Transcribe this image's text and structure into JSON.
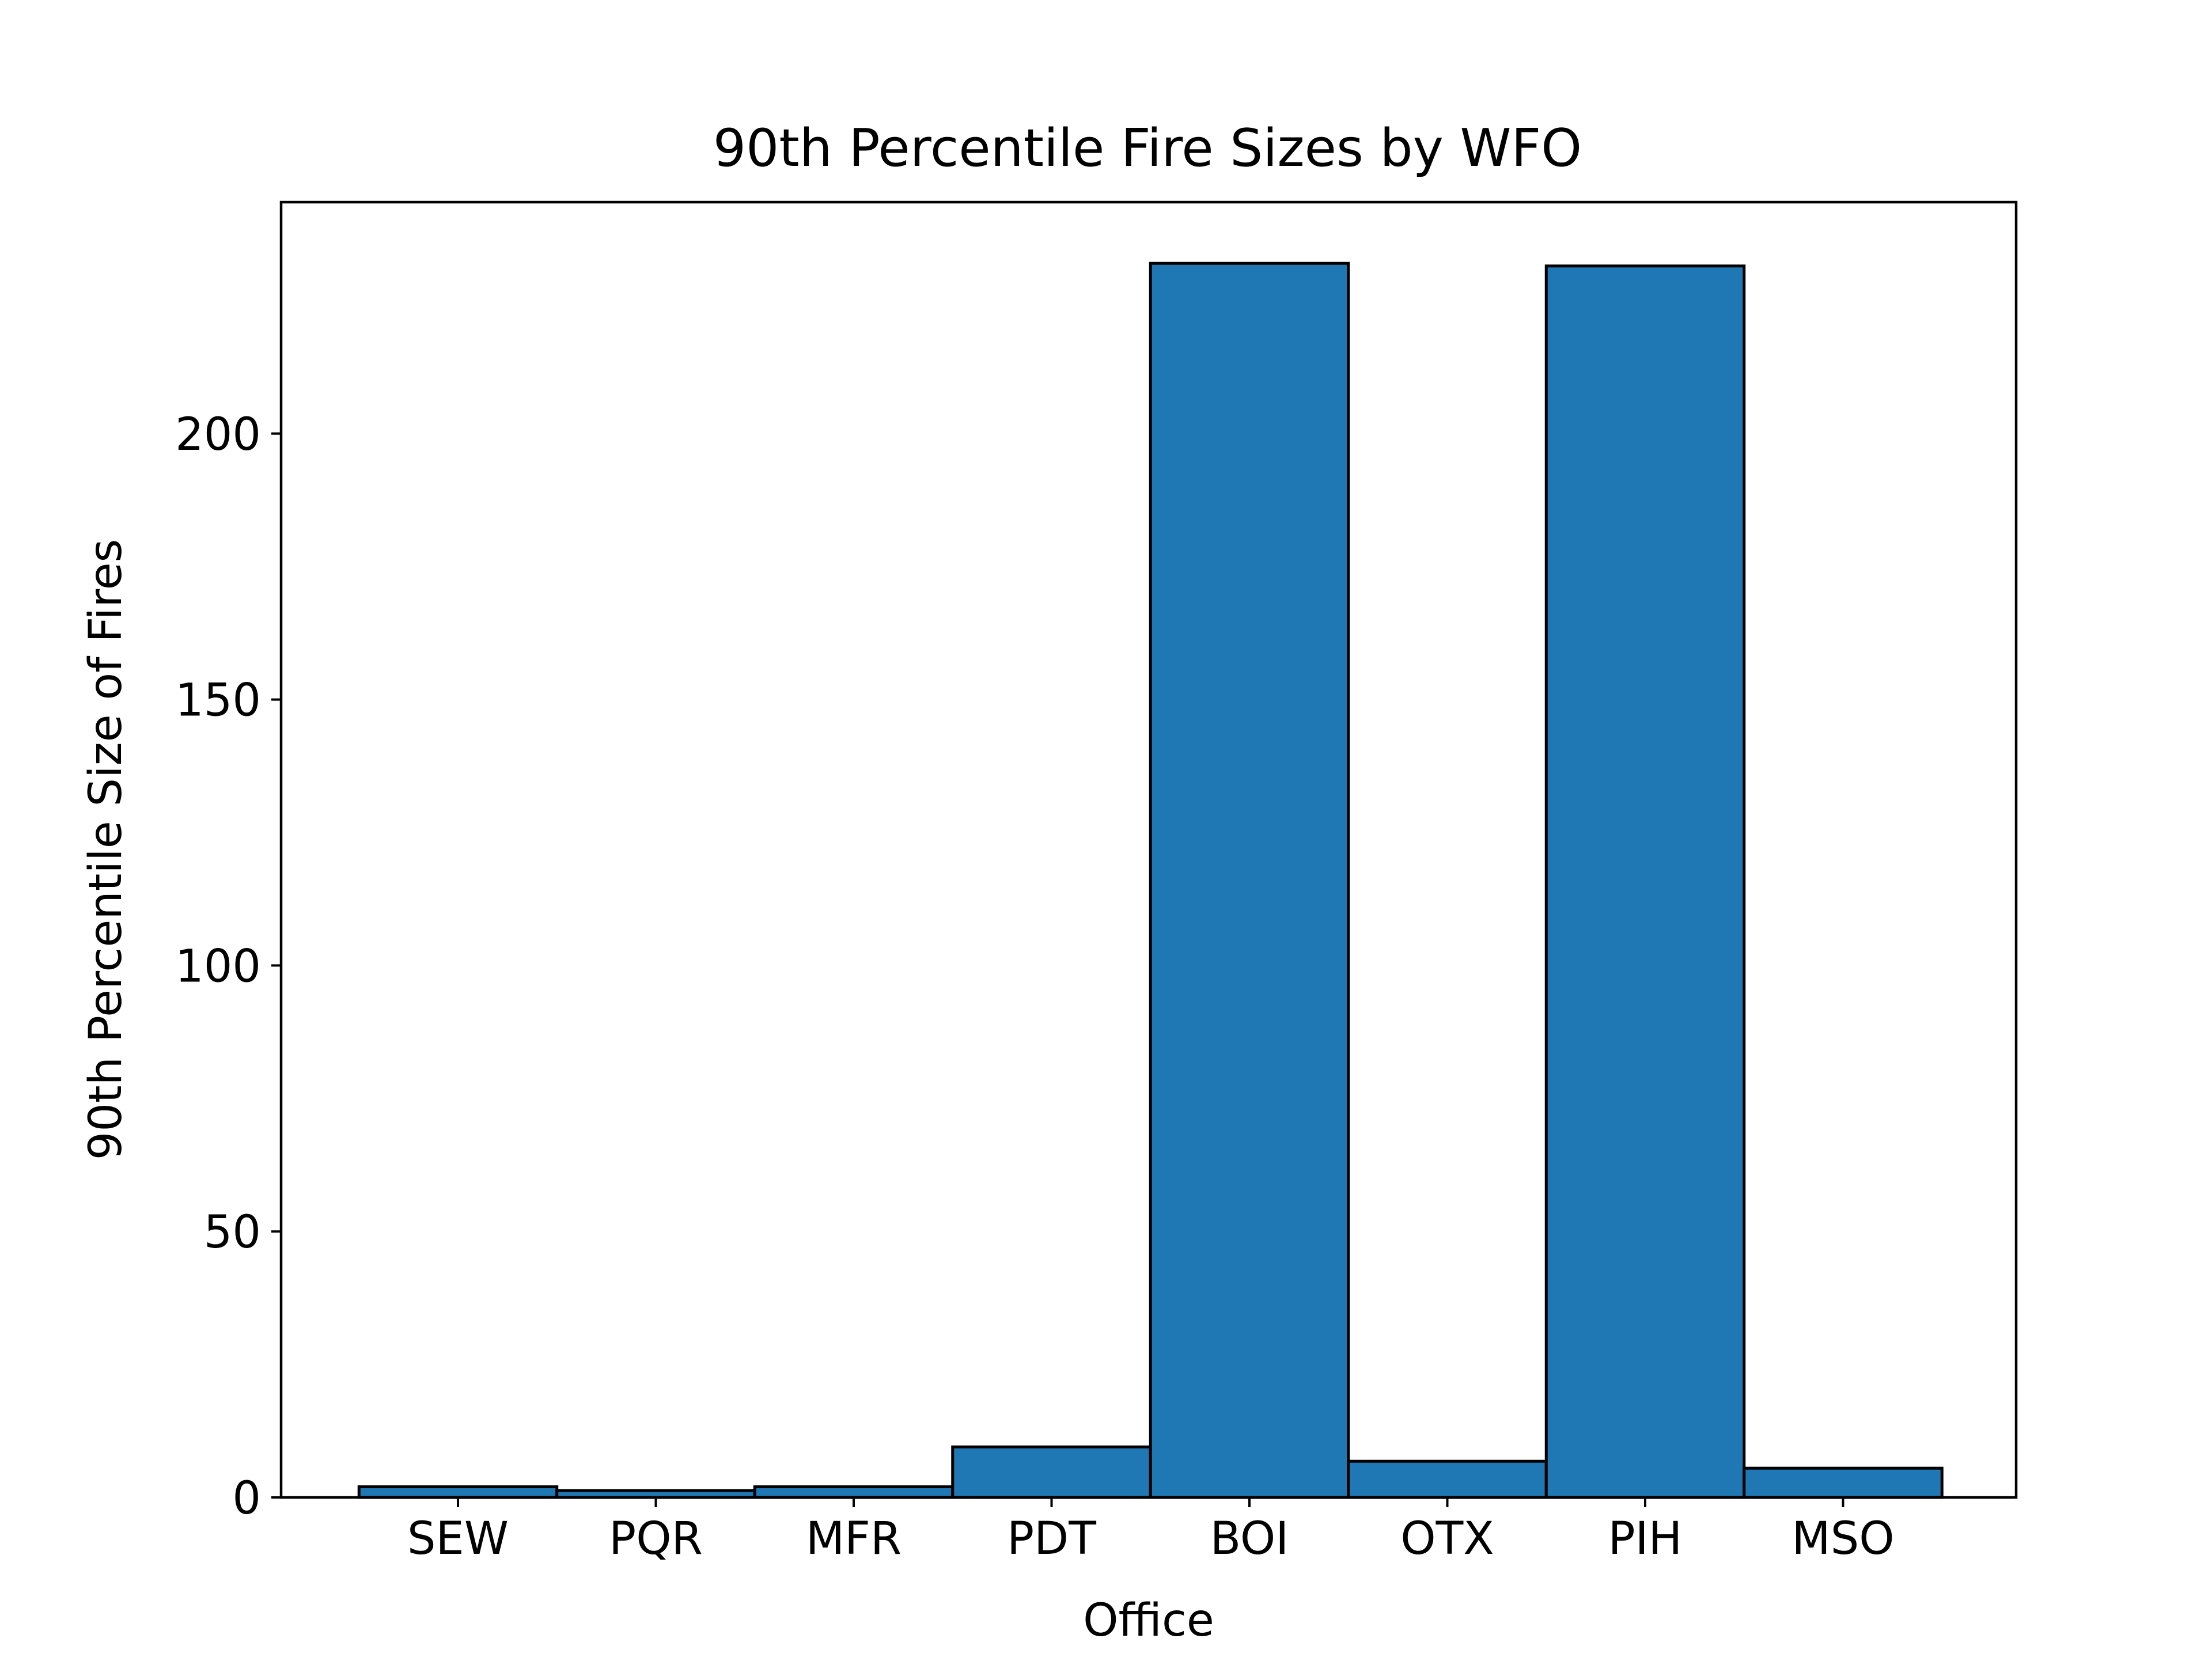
{
  "chart_data": {
    "type": "bar",
    "title": "90th Percentile Fire Sizes by WFO",
    "xlabel": "Office",
    "ylabel": "90th Percentile Size of Fires",
    "categories": [
      "SEW",
      "PQR",
      "MFR",
      "PDT",
      "BOI",
      "OTX",
      "PIH",
      "MSO"
    ],
    "values": [
      2,
      1.3,
      2,
      9.5,
      232,
      6.8,
      231.5,
      5.5
    ],
    "ylim": [
      0,
      243.5
    ],
    "yticks": [
      0,
      50,
      100,
      150,
      200
    ],
    "grid": false,
    "bar_color": "#1f77b4",
    "edge_color": "#000000"
  }
}
